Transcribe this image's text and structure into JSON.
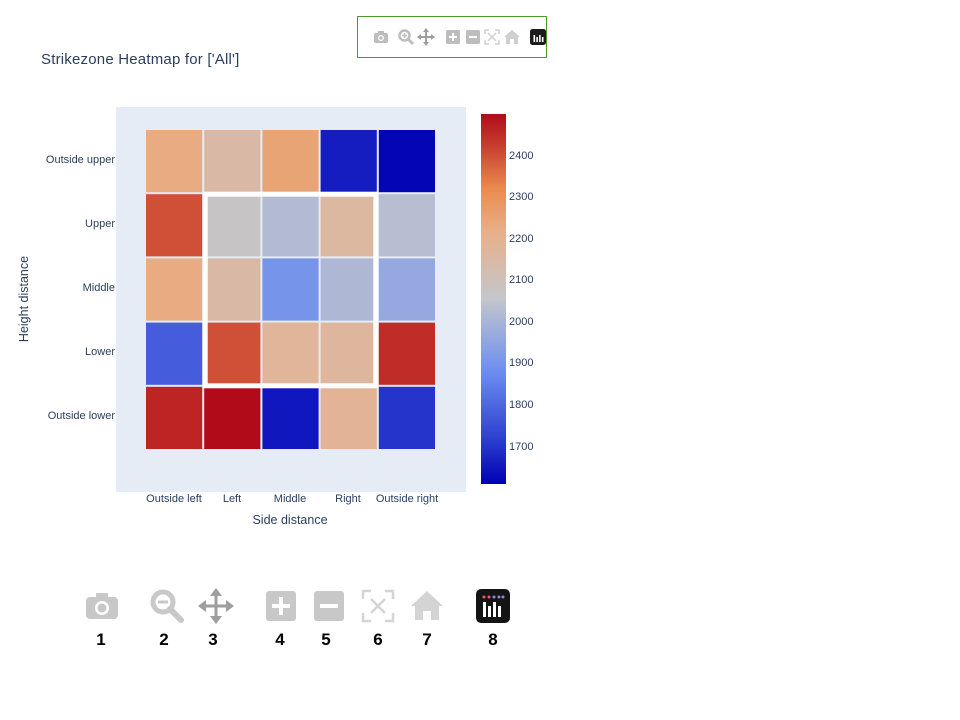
{
  "title": "Strikezone Heatmap for ['All']",
  "modebar": {
    "buttons": [
      {
        "name": "camera-icon",
        "label": "Download plot as a png"
      },
      {
        "name": "zoom-icon",
        "label": "Zoom"
      },
      {
        "name": "pan-icon",
        "label": "Pan"
      },
      {
        "name": "zoom-in-icon",
        "label": "Zoom in"
      },
      {
        "name": "zoom-out-icon",
        "label": "Zoom out"
      },
      {
        "name": "autoscale-icon",
        "label": "Autoscale"
      },
      {
        "name": "home-icon",
        "label": "Reset axes"
      },
      {
        "name": "plotly-logo-icon",
        "label": "Produced with Plotly"
      }
    ]
  },
  "legend_numbers": [
    "1",
    "2",
    "3",
    "4",
    "5",
    "6",
    "7",
    "8"
  ],
  "chart_data": {
    "type": "heatmap",
    "title": "Strikezone Heatmap for ['All']",
    "xlabel": "Side distance",
    "ylabel": "Height distance",
    "x_categories": [
      "Outside left",
      "Left",
      "Middle",
      "Right",
      "Outside right"
    ],
    "y_categories": [
      "Outside upper",
      "Upper",
      "Middle",
      "Lower",
      "Outside lower"
    ],
    "z": [
      [
        2230,
        2150,
        2250,
        1660,
        1620
      ],
      [
        2400,
        2070,
        2020,
        2160,
        2030
      ],
      [
        2230,
        2150,
        1900,
        2010,
        1960
      ],
      [
        1780,
        2400,
        2180,
        2170,
        2450
      ],
      [
        2460,
        2500,
        1650,
        2190,
        1700
      ]
    ],
    "zlim": [
      1610,
      2500
    ],
    "colorscale": "coolwarm",
    "colorbar_ticks": [
      1700,
      1800,
      1900,
      2000,
      2100,
      2200,
      2300,
      2400
    ],
    "strike_zone": {
      "x": [
        "Left",
        "Right"
      ],
      "y": [
        "Upper",
        "Lower"
      ],
      "color": "#ffffff"
    },
    "grid": false
  },
  "colors": {
    "plot_bg": "#e5ecf6",
    "text": "#2a3f5f",
    "modebar_border": "#4d9a2b"
  }
}
